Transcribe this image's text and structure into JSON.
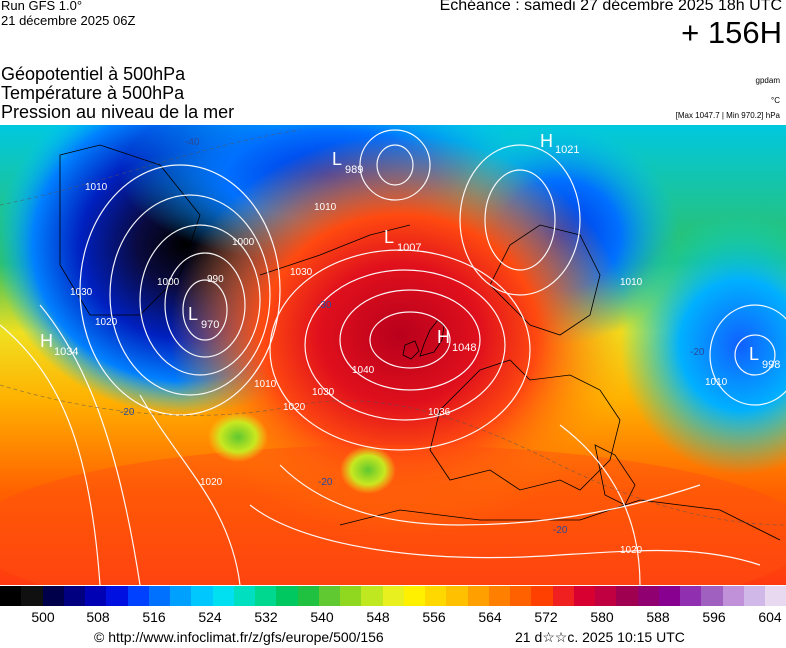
{
  "header": {
    "run": "Run GFS 1.0°",
    "run_date": "21 décembre 2025 06Z",
    "echeance": "Echéance : samedi 27 décembre 2025 18h UTC",
    "step": "+ 156H"
  },
  "fields": [
    "Géopotentiel à 500hPa",
    "Température à 500hPa",
    "Pression au niveau de la mer"
  ],
  "units": {
    "geopotential": "gpdam",
    "temperature": "°C",
    "pressure_range": "[Max 1047.7 | Min 970.2] hPa"
  },
  "pressure_centers": [
    {
      "type": "L",
      "value": "989"
    },
    {
      "type": "H",
      "value": "1021"
    },
    {
      "type": "L",
      "value": "1007"
    },
    {
      "type": "L",
      "value": "970"
    },
    {
      "type": "H",
      "value": "1034"
    },
    {
      "type": "H",
      "value": "1048"
    },
    {
      "type": "L",
      "value": "998"
    }
  ],
  "isobar_labels": [
    "1040",
    "1030",
    "1020",
    "1010",
    "1000",
    "990",
    "1036",
    "1030",
    "1020",
    "1010",
    "1010",
    "1000",
    "1010",
    "1010",
    "1020",
    "1030",
    "1020"
  ],
  "temperature_labels": [
    "-40",
    "-30",
    "-20",
    "-20",
    "-20",
    "-20"
  ],
  "colorbar": {
    "ticks": [
      "500",
      "508",
      "516",
      "524",
      "532",
      "540",
      "548",
      "556",
      "564",
      "572",
      "580",
      "588",
      "596",
      "604"
    ],
    "colors": [
      "#000000",
      "#101010",
      "#00004a",
      "#000080",
      "#0000b4",
      "#0010e0",
      "#0040ff",
      "#0070ff",
      "#00a0ff",
      "#00c8ff",
      "#00e0f0",
      "#00e0c0",
      "#00d890",
      "#00c860",
      "#20c040",
      "#60c830",
      "#90d820",
      "#c0e820",
      "#e8f020",
      "#fff000",
      "#ffd800",
      "#ffc000",
      "#ffa000",
      "#ff8000",
      "#ff6000",
      "#ff4000",
      "#f02020",
      "#d80030",
      "#c00040",
      "#a00050",
      "#900070",
      "#880090",
      "#9030b0",
      "#a060c0",
      "#c090d8",
      "#d0b8e8",
      "#e8d8f0"
    ]
  },
  "footer": {
    "url": "© http://www.infoclimat.fr/z/gfs/europe/500/156",
    "date": "21 d☆☆c. 2025 10:15 UTC"
  }
}
